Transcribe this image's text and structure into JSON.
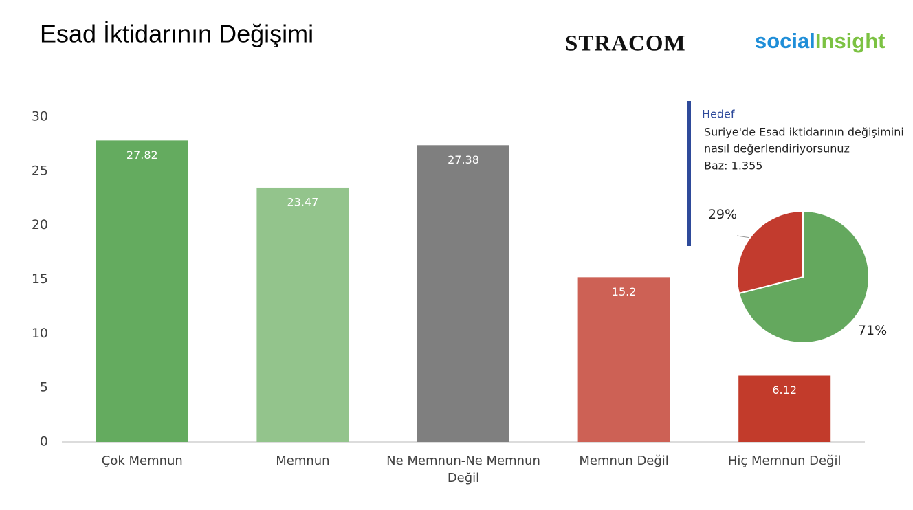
{
  "title": "Esad İktidarının Değişimi",
  "logos": {
    "stracom": "STRACOM",
    "social": "social",
    "insight": "Insight"
  },
  "chart_data": [
    {
      "type": "bar",
      "categories": [
        "Çok Memnun",
        "Memnun",
        "Ne Memnun-Ne Memnun Değil",
        "Memnun Değil",
        "Hiç Memnun Değil"
      ],
      "values": [
        27.82,
        23.47,
        27.38,
        15.2,
        6.12
      ],
      "colors": [
        "#64ab5f",
        "#93c48c",
        "#7f7f7f",
        "#cd6155",
        "#c23b2b"
      ],
      "ylim": [
        0,
        30
      ],
      "yticks": [
        0,
        5,
        10,
        15,
        20,
        25,
        30
      ],
      "grid": false
    },
    {
      "type": "pie",
      "title": "Hedef",
      "subtitle_lines": [
        "Suriye'de Esad iktidarının değişimini",
        "nasıl değerlendiriyorsunuz"
      ],
      "note": "Baz: 1.355",
      "values": [
        71,
        29
      ],
      "value_labels": [
        "71%",
        "29%"
      ],
      "colors": [
        "#64a85e",
        "#c23b2e"
      ]
    }
  ]
}
